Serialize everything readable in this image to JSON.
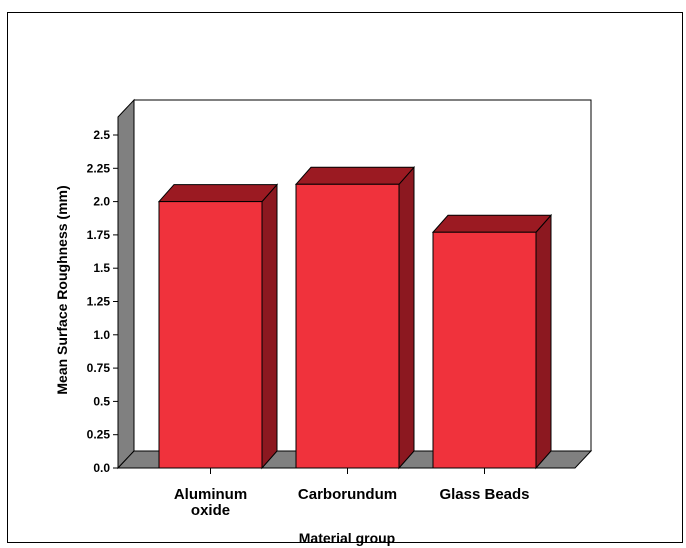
{
  "chart_data": {
    "type": "bar",
    "categories": [
      "Aluminum oxide",
      "Carborundum",
      "Glass Beads"
    ],
    "category_labels": [
      [
        "Aluminum",
        "oxide"
      ],
      [
        "Carborundum"
      ],
      [
        "Glass Beads"
      ]
    ],
    "values": [
      2.0,
      2.13,
      1.77
    ],
    "xlabel": "Material group",
    "ylabel": "Mean Surface Roughness (mm)",
    "ylim": [
      0,
      2.5
    ],
    "yticks": [
      "0.0",
      "0.25",
      "0.5",
      "0.75",
      "1.0",
      "1.25",
      "1.5",
      "1.75",
      "2.0",
      "2.25",
      "2.5"
    ],
    "style": "3d-bar",
    "grid": false,
    "colors": {
      "bar_front": "#f0323c",
      "bar_top": "#9b1a22",
      "bar_side": "#8c1820",
      "floor": "#808080",
      "wall": "#808080",
      "outline": "#000000"
    }
  }
}
